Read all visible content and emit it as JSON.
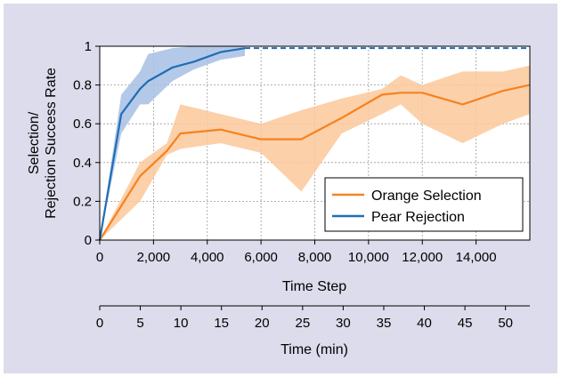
{
  "chart_data": {
    "type": "line",
    "xlabel": "Time Step",
    "ylabel_lines": [
      "Selection/",
      "Rejection Success Rate"
    ],
    "xlim": [
      0,
      16000
    ],
    "ylim": [
      0,
      1
    ],
    "x_ticks": [
      0,
      2000,
      4000,
      6000,
      8000,
      10000,
      12000,
      14000
    ],
    "x_tick_labels": [
      "0",
      "2,000",
      "4,000",
      "6,000",
      "8,000",
      "10,000",
      "12,000",
      "14,000"
    ],
    "y_ticks": [
      0,
      0.2,
      0.4,
      0.6,
      0.8,
      1
    ],
    "y_tick_labels": [
      "0",
      "0.2",
      "0.4",
      "0.6",
      "0.8",
      "1"
    ],
    "grid": true,
    "legend_position": "bottom-right",
    "series": [
      {
        "name": "Orange Selection",
        "color": "#f58220",
        "band_color": "#fcc89a",
        "x": [
          0,
          1500,
          2500,
          3000,
          4500,
          6000,
          7500,
          9000,
          10500,
          11200,
          12000,
          13500,
          15000,
          16000
        ],
        "y": [
          0,
          0.33,
          0.46,
          0.55,
          0.57,
          0.52,
          0.52,
          0.63,
          0.75,
          0.76,
          0.76,
          0.7,
          0.77,
          0.8
        ],
        "lower": [
          0,
          0.2,
          0.44,
          0.47,
          0.5,
          0.45,
          0.25,
          0.55,
          0.65,
          0.7,
          0.6,
          0.5,
          0.6,
          0.65
        ],
        "upper": [
          0,
          0.4,
          0.5,
          0.7,
          0.65,
          0.6,
          0.67,
          0.73,
          0.78,
          0.85,
          0.8,
          0.87,
          0.87,
          0.9
        ]
      },
      {
        "name": "Pear Rejection",
        "color": "#1f6eb5",
        "band_color": "#a7c0e4",
        "x": [
          0,
          800,
          1500,
          1800,
          2700,
          3500,
          4500,
          5400
        ],
        "y": [
          0,
          0.65,
          0.78,
          0.82,
          0.89,
          0.92,
          0.97,
          0.99
        ],
        "lower": [
          0,
          0.55,
          0.7,
          0.7,
          0.82,
          0.88,
          0.93,
          0.95
        ],
        "upper": [
          0,
          0.75,
          0.87,
          0.96,
          0.99,
          1.0,
          1.0,
          1.0
        ],
        "dashed_to": 16000
      }
    ],
    "secondary_axis": {
      "label": "Time (min)",
      "range": [
        0,
        53
      ],
      "ticks": [
        0,
        5,
        10,
        15,
        20,
        25,
        30,
        35,
        40,
        45,
        50
      ],
      "tick_labels": [
        "0",
        "5",
        "10",
        "15",
        "20",
        "25",
        "30",
        "35",
        "40",
        "45",
        "50"
      ]
    }
  }
}
